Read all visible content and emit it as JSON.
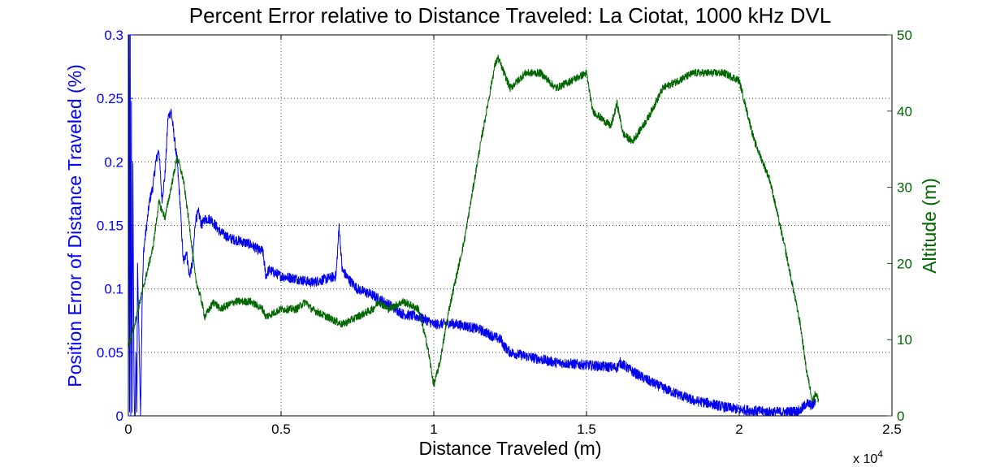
{
  "chart_data": {
    "type": "line",
    "title": "Percent Error relative to Distance Traveled:   La Ciotat, 1000 kHz DVL",
    "xlabel": "Distance Traveled (m)",
    "ylabel_left": "Position Error of Distance Traveled (%)",
    "ylabel_right": "Altitude (m)",
    "x_multiplier": "x 10",
    "x_multiplier_exp": "4",
    "xlim": [
      0,
      2.5
    ],
    "ylim_left": [
      0,
      0.3
    ],
    "ylim_right": [
      0,
      50
    ],
    "grid": true,
    "x_ticks": [
      "0",
      "0.5",
      "1",
      "1.5",
      "2",
      "2.5"
    ],
    "y_left_ticks": [
      "0",
      "0.05",
      "0.1",
      "0.15",
      "0.2",
      "0.25",
      "0.3"
    ],
    "y_right_ticks": [
      "0",
      "10",
      "20",
      "30",
      "40",
      "50"
    ],
    "colors": {
      "left_axis": "#0000ff",
      "right_axis": "#006600",
      "error_series": "#0000ee",
      "altitude_series": "#006600"
    },
    "series": [
      {
        "axis": "left",
        "noise": 0.004,
        "x": [
          0.0,
          0.002,
          0.003,
          0.004,
          0.006,
          0.008,
          0.01,
          0.012,
          0.015,
          0.018,
          0.02,
          0.022,
          0.025,
          0.028,
          0.03,
          0.035,
          0.04,
          0.045,
          0.05,
          0.06,
          0.07,
          0.08,
          0.09,
          0.1,
          0.11,
          0.12,
          0.13,
          0.14,
          0.15,
          0.16,
          0.17,
          0.18,
          0.19,
          0.2,
          0.21,
          0.22,
          0.23,
          0.24,
          0.25,
          0.27,
          0.3,
          0.33,
          0.36,
          0.4,
          0.43,
          0.44,
          0.45,
          0.46,
          0.5,
          0.55,
          0.6,
          0.65,
          0.68,
          0.69,
          0.7,
          0.72,
          0.75,
          0.8,
          0.85,
          0.9,
          0.95,
          0.98,
          1.0,
          1.05,
          1.1,
          1.15,
          1.2,
          1.22,
          1.23,
          1.25,
          1.3,
          1.4,
          1.5,
          1.55,
          1.6,
          1.61,
          1.65,
          1.7,
          1.75,
          1.8,
          1.85,
          1.9,
          1.95,
          2.0,
          2.05,
          2.1,
          2.15,
          2.2,
          2.22,
          2.24,
          2.25
        ],
        "y": [
          0.0,
          0.3,
          0.3,
          0.0,
          0.3,
          0.0,
          0.25,
          0.0,
          0.2,
          0.04,
          0.0,
          0.0,
          0.05,
          0.0,
          0.12,
          0.06,
          0.0,
          0.09,
          0.13,
          0.15,
          0.17,
          0.18,
          0.2,
          0.21,
          0.17,
          0.19,
          0.235,
          0.24,
          0.22,
          0.2,
          0.165,
          0.12,
          0.13,
          0.11,
          0.12,
          0.155,
          0.16,
          0.15,
          0.155,
          0.155,
          0.145,
          0.14,
          0.138,
          0.135,
          0.13,
          0.13,
          0.11,
          0.115,
          0.11,
          0.108,
          0.105,
          0.108,
          0.11,
          0.15,
          0.115,
          0.108,
          0.1,
          0.095,
          0.088,
          0.08,
          0.078,
          0.075,
          0.072,
          0.073,
          0.071,
          0.068,
          0.062,
          0.06,
          0.055,
          0.05,
          0.047,
          0.042,
          0.04,
          0.039,
          0.038,
          0.042,
          0.035,
          0.028,
          0.022,
          0.017,
          0.012,
          0.01,
          0.007,
          0.005,
          0.004,
          0.003,
          0.003,
          0.004,
          0.01,
          0.008,
          0.012
        ]
      },
      {
        "axis": "right",
        "noise": 0.5,
        "x": [
          0.0,
          0.02,
          0.05,
          0.08,
          0.1,
          0.12,
          0.14,
          0.16,
          0.18,
          0.2,
          0.22,
          0.24,
          0.25,
          0.28,
          0.3,
          0.35,
          0.4,
          0.44,
          0.45,
          0.5,
          0.55,
          0.58,
          0.6,
          0.65,
          0.7,
          0.75,
          0.8,
          0.82,
          0.85,
          0.9,
          0.95,
          0.98,
          1.0,
          1.02,
          1.05,
          1.1,
          1.15,
          1.2,
          1.21,
          1.25,
          1.3,
          1.35,
          1.4,
          1.45,
          1.5,
          1.52,
          1.55,
          1.58,
          1.6,
          1.62,
          1.65,
          1.7,
          1.75,
          1.8,
          1.85,
          1.9,
          1.95,
          2.0,
          2.05,
          2.1,
          2.15,
          2.2,
          2.22,
          2.24,
          2.25,
          2.26
        ],
        "y": [
          9,
          12,
          17,
          22,
          28,
          26,
          30,
          34,
          31,
          25,
          18,
          15,
          13,
          15,
          14,
          15,
          15,
          14,
          13,
          14,
          14,
          15,
          14,
          13,
          12,
          13,
          14,
          15,
          14,
          15,
          14,
          9,
          4,
          7,
          14,
          23,
          35,
          46,
          47,
          43,
          45,
          45,
          43,
          44,
          45,
          40,
          39,
          38,
          41,
          37,
          36,
          39,
          43,
          44,
          45,
          45,
          45,
          44,
          36,
          31,
          22,
          12,
          6,
          2,
          3,
          2
        ]
      }
    ]
  }
}
